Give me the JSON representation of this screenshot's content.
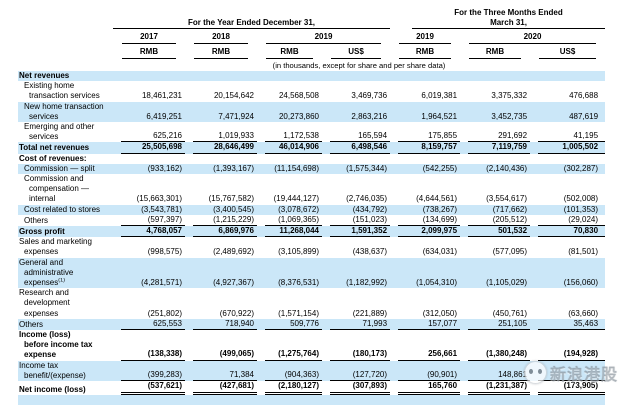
{
  "header": {
    "groups": [
      {
        "line1": "",
        "line2": "For the Year Ended December 31,"
      },
      {
        "line1": "For the Three Months Ended",
        "line2": "March 31,"
      }
    ],
    "years": [
      "2017",
      "2018",
      "2019",
      "2019",
      "2020"
    ],
    "currencies": [
      "RMB",
      "RMB",
      "RMB",
      "US$",
      "RMB",
      "RMB",
      "US$"
    ],
    "units_note": "(in thousands, except for share and per share data)"
  },
  "rows": [
    {
      "label_lines": [
        "Net revenues"
      ],
      "indents": [
        0
      ],
      "bold": true,
      "stripe": true,
      "underline": "none",
      "values": [
        "",
        "",
        "",
        "",
        "",
        "",
        ""
      ]
    },
    {
      "label_lines": [
        "Existing home",
        "transaction services"
      ],
      "indents": [
        1,
        2
      ],
      "bold": false,
      "stripe": false,
      "underline": "none",
      "values": [
        "18,461,231",
        "20,154,642",
        "24,568,508",
        "3,469,736",
        "6,019,381",
        "3,375,332",
        "476,688"
      ]
    },
    {
      "label_lines": [
        "New home transaction",
        "services"
      ],
      "indents": [
        1,
        2
      ],
      "bold": false,
      "stripe": true,
      "underline": "none",
      "values": [
        "6,419,251",
        "7,471,924",
        "20,273,860",
        "2,863,216",
        "1,964,521",
        "3,452,735",
        "487,619"
      ]
    },
    {
      "label_lines": [
        "Emerging and other",
        "services"
      ],
      "indents": [
        1,
        2
      ],
      "bold": false,
      "stripe": false,
      "underline": "single",
      "values": [
        "625,216",
        "1,019,933",
        "1,172,538",
        "165,594",
        "175,855",
        "291,692",
        "41,195"
      ]
    },
    {
      "label_lines": [
        "Total net revenues"
      ],
      "indents": [
        0
      ],
      "bold": true,
      "stripe": true,
      "underline": "single",
      "values": [
        "25,505,698",
        "28,646,499",
        "46,014,906",
        "6,498,546",
        "8,159,757",
        "7,119,759",
        "1,005,502"
      ]
    },
    {
      "label_lines": [
        "Cost of revenues:"
      ],
      "indents": [
        0
      ],
      "bold": true,
      "stripe": false,
      "underline": "none",
      "values": [
        "",
        "",
        "",
        "",
        "",
        "",
        ""
      ]
    },
    {
      "label_lines": [
        "Commission — split"
      ],
      "indents": [
        1
      ],
      "bold": false,
      "stripe": true,
      "underline": "none",
      "values": [
        "(933,162)",
        "(1,393,167)",
        "(11,154,698)",
        "(1,575,344)",
        "(542,255)",
        "(2,140,436)",
        "(302,287)"
      ]
    },
    {
      "label_lines": [
        "Commission and",
        "compensation —",
        "internal"
      ],
      "indents": [
        1,
        2,
        2
      ],
      "bold": false,
      "stripe": false,
      "underline": "none",
      "values": [
        "(15,663,301)",
        "(15,767,582)",
        "(19,444,127)",
        "(2,746,035)",
        "(4,644,561)",
        "(3,554,617)",
        "(502,008)"
      ]
    },
    {
      "label_lines": [
        "Cost related to stores"
      ],
      "indents": [
        1
      ],
      "bold": false,
      "stripe": true,
      "underline": "none",
      "values": [
        "(3,543,781)",
        "(3,400,545)",
        "(3,078,672)",
        "(434,792)",
        "(738,267)",
        "(717,662)",
        "(101,353)"
      ]
    },
    {
      "label_lines": [
        "Others"
      ],
      "indents": [
        1
      ],
      "bold": false,
      "stripe": false,
      "underline": "single",
      "values": [
        "(597,397)",
        "(1,215,229)",
        "(1,069,365)",
        "(151,023)",
        "(134,699)",
        "(205,512)",
        "(29,024)"
      ]
    },
    {
      "label_lines": [
        "Gross profit"
      ],
      "indents": [
        0
      ],
      "bold": true,
      "stripe": true,
      "underline": "single",
      "values": [
        "4,768,057",
        "6,869,976",
        "11,268,044",
        "1,591,352",
        "2,099,975",
        "501,532",
        "70,830"
      ]
    },
    {
      "label_lines": [
        "Sales and marketing",
        "expenses"
      ],
      "indents": [
        0,
        1
      ],
      "bold": false,
      "stripe": false,
      "underline": "none",
      "values": [
        "(998,575)",
        "(2,489,692)",
        "(3,105,899)",
        "(438,637)",
        "(634,031)",
        "(577,095)",
        "(81,501)"
      ]
    },
    {
      "label_lines": [
        "General and",
        "administrative",
        "expenses"
      ],
      "indents": [
        0,
        1,
        1
      ],
      "sup": "(1)",
      "bold": false,
      "stripe": true,
      "underline": "none",
      "values": [
        "(4,281,571)",
        "(4,927,367)",
        "(8,376,531)",
        "(1,182,992)",
        "(1,054,310)",
        "(1,105,029)",
        "(156,060)"
      ]
    },
    {
      "label_lines": [
        "Research and",
        "development",
        "expenses"
      ],
      "indents": [
        0,
        1,
        1
      ],
      "bold": false,
      "stripe": false,
      "underline": "none",
      "values": [
        "(251,802)",
        "(670,922)",
        "(1,571,154)",
        "(221,889)",
        "(312,050)",
        "(450,761)",
        "(63,660)"
      ]
    },
    {
      "label_lines": [
        "Others"
      ],
      "indents": [
        0
      ],
      "bold": false,
      "stripe": true,
      "underline": "single",
      "values": [
        "625,553",
        "718,940",
        "509,776",
        "71,993",
        "157,077",
        "251,105",
        "35,463"
      ]
    },
    {
      "label_lines": [
        "Income (loss)",
        "before income tax",
        "expense"
      ],
      "indents": [
        0,
        1,
        1
      ],
      "bold": true,
      "stripe": false,
      "underline": "single",
      "values": [
        "(138,338)",
        "(499,065)",
        "(1,275,764)",
        "(180,173)",
        "256,661",
        "(1,380,248)",
        "(194,928)"
      ]
    },
    {
      "label_lines": [
        "Income tax",
        "benefit/(expense)"
      ],
      "indents": [
        0,
        1
      ],
      "bold": false,
      "stripe": true,
      "underline": "single",
      "values": [
        "(399,283)",
        "71,384",
        "(904,363)",
        "(127,720)",
        "(90,901)",
        "148,861",
        ""
      ]
    },
    {
      "label_lines": [
        "Net income (loss)"
      ],
      "indents": [
        0
      ],
      "bold": true,
      "stripe": false,
      "underline": "double",
      "values": [
        "(537,621)",
        "(427,681)",
        "(2,180,127)",
        "(307,893)",
        "165,760",
        "(1,231,387)",
        "(173,905)"
      ]
    }
  ],
  "watermark": {
    "text": "新浪港股"
  },
  "colors": {
    "stripe": "#cbe7f8",
    "rule_line": "#000000",
    "text": "#000000"
  }
}
